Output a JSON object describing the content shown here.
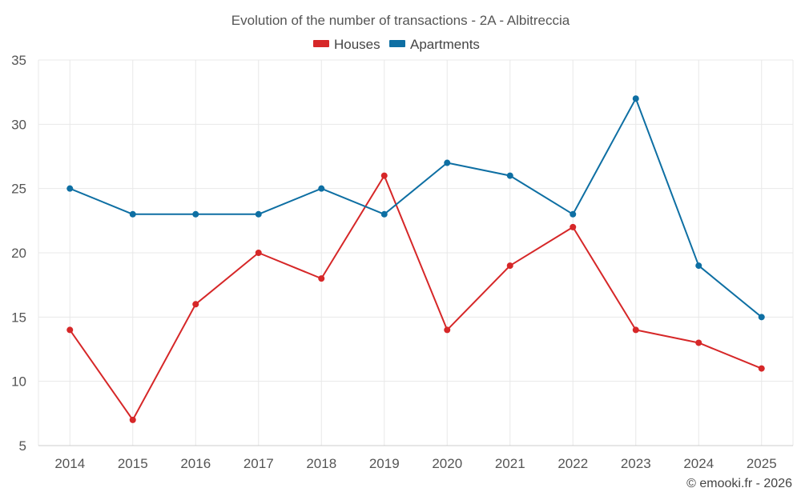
{
  "chart_data": {
    "type": "line",
    "title": "Evolution of the number of transactions - 2A - Albitreccia",
    "x": [
      "2014",
      "2015",
      "2016",
      "2017",
      "2018",
      "2019",
      "2020",
      "2021",
      "2022",
      "2023",
      "2024",
      "2025"
    ],
    "series": [
      {
        "name": "Houses",
        "color": "#d62728",
        "values": [
          14,
          7,
          16,
          20,
          18,
          26,
          14,
          19,
          22,
          14,
          13,
          11
        ]
      },
      {
        "name": "Apartments",
        "color": "#0e6fa3",
        "values": [
          25,
          23,
          23,
          23,
          25,
          23,
          27,
          26,
          23,
          32,
          19,
          15
        ]
      }
    ],
    "xlabel": "",
    "ylabel": "",
    "ylim": [
      5,
      35
    ],
    "yticks": [
      5,
      10,
      15,
      20,
      25,
      30,
      35
    ],
    "grid": true,
    "legend_position": "top-center",
    "credit": "© emooki.fr - 2026"
  }
}
